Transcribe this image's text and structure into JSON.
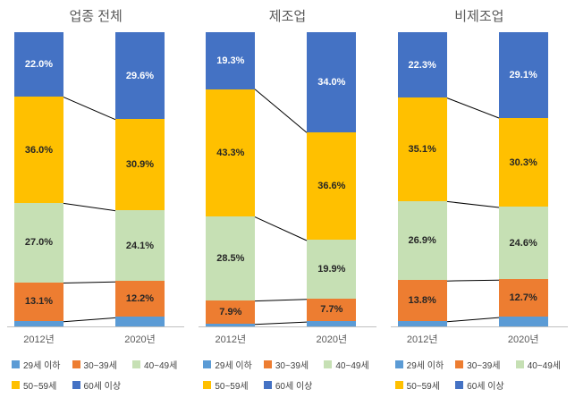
{
  "chart_data": [
    {
      "type": "bar",
      "stacked": true,
      "title": "업종 전체",
      "categories": [
        "2012년",
        "2020년"
      ],
      "ylim": [
        0,
        100
      ],
      "unit": "%",
      "legend_position": "bottom",
      "grid": false,
      "series": [
        {
          "name": "29세 이하",
          "color": "#5B9BD5",
          "values": [
            1.9,
            3.2
          ],
          "labels": [
            "",
            ""
          ]
        },
        {
          "name": "30~39세",
          "color": "#ED7D31",
          "values": [
            13.1,
            12.2
          ],
          "labels": [
            "13.1%",
            "12.2%"
          ]
        },
        {
          "name": "40~49세",
          "color": "#C6E0B4",
          "values": [
            27.0,
            24.1
          ],
          "labels": [
            "27.0%",
            "24.1%"
          ]
        },
        {
          "name": "50~59세",
          "color": "#FFC000",
          "values": [
            36.0,
            30.9
          ],
          "labels": [
            "36.0%",
            "30.9%"
          ]
        },
        {
          "name": "60세 이상",
          "color": "#4472C4",
          "values": [
            22.0,
            29.6
          ],
          "labels": [
            "22.0%",
            "29.6%"
          ]
        }
      ]
    },
    {
      "type": "bar",
      "stacked": true,
      "title": "제조업",
      "categories": [
        "2012년",
        "2020년"
      ],
      "ylim": [
        0,
        100
      ],
      "unit": "%",
      "legend_position": "bottom",
      "grid": false,
      "series": [
        {
          "name": "29세 이하",
          "color": "#5B9BD5",
          "values": [
            1.0,
            1.8
          ],
          "labels": [
            "",
            ""
          ]
        },
        {
          "name": "30~39세",
          "color": "#ED7D31",
          "values": [
            7.9,
            7.7
          ],
          "labels": [
            "7.9%",
            "7.7%"
          ]
        },
        {
          "name": "40~49세",
          "color": "#C6E0B4",
          "values": [
            28.5,
            19.9
          ],
          "labels": [
            "28.5%",
            "19.9%"
          ]
        },
        {
          "name": "50~59세",
          "color": "#FFC000",
          "values": [
            43.3,
            36.6
          ],
          "labels": [
            "43.3%",
            "36.6%"
          ]
        },
        {
          "name": "60세 이상",
          "color": "#4472C4",
          "values": [
            19.3,
            34.0
          ],
          "labels": [
            "19.3%",
            "34.0%"
          ]
        }
      ]
    },
    {
      "type": "bar",
      "stacked": true,
      "title": "비제조업",
      "categories": [
        "2012년",
        "2020년"
      ],
      "ylim": [
        0,
        100
      ],
      "unit": "%",
      "legend_position": "bottom",
      "grid": false,
      "series": [
        {
          "name": "29세 이하",
          "color": "#5B9BD5",
          "values": [
            1.9,
            3.3
          ],
          "labels": [
            "",
            ""
          ]
        },
        {
          "name": "30~39세",
          "color": "#ED7D31",
          "values": [
            13.8,
            12.7
          ],
          "labels": [
            "13.8%",
            "12.7%"
          ]
        },
        {
          "name": "40~49세",
          "color": "#C6E0B4",
          "values": [
            26.9,
            24.6
          ],
          "labels": [
            "26.9%",
            "24.6%"
          ]
        },
        {
          "name": "50~59세",
          "color": "#FFC000",
          "values": [
            35.1,
            30.3
          ],
          "labels": [
            "35.1%",
            "30.3%"
          ]
        },
        {
          "name": "60세 이상",
          "color": "#4472C4",
          "values": [
            22.3,
            29.1
          ],
          "labels": [
            "22.3%",
            "29.1%"
          ]
        }
      ]
    }
  ],
  "style": {
    "title_color": "#595959",
    "axis_label_color": "#595959",
    "axis_line_color": "#BFBFBF",
    "connector_color": "#000000",
    "label_dark": "#262626",
    "label_light": "#FFFFFF"
  }
}
